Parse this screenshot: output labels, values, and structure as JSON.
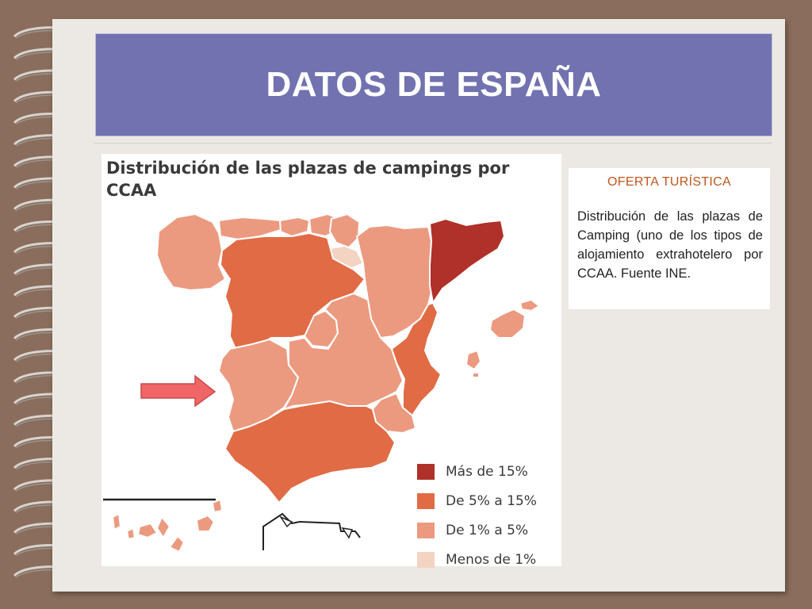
{
  "slide": {
    "title": "DATOS DE ESPAÑA"
  },
  "map": {
    "title": "Distribución de las plazas de campings por CCAA",
    "legend": [
      {
        "label": "Más de 15%",
        "color": "#b0302a"
      },
      {
        "label": "De 5% a 15%",
        "color": "#e06b45"
      },
      {
        "label": "De 1% a 5%",
        "color": "#eb9a80"
      },
      {
        "label": "Menos de 1%",
        "color": "#f3d3c2"
      }
    ],
    "pointer": {
      "icon": "arrow-right-icon",
      "color": "#f06565"
    }
  },
  "info": {
    "heading": "OFERTA TURÍSTICA",
    "text": "Distribución de las plazas de Camping (uno de los tipos de alojamiento extrahotelero por CCAA. Fuente INE."
  },
  "colors": {
    "background": "#8a6d5c",
    "page": "#ece9e4",
    "title_bar": "#7272b0",
    "heading_accent": "#c0561b"
  }
}
